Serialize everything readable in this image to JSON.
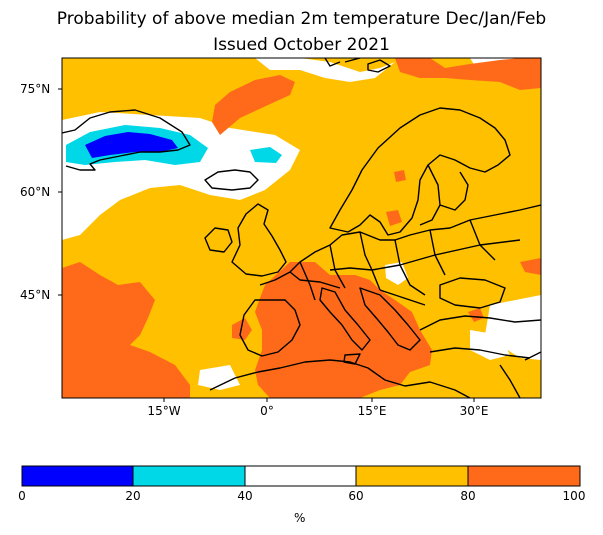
{
  "title": {
    "line1": "Probability of above median 2m temperature Dec/Jan/Feb",
    "line2": "Issued October 2021"
  },
  "map": {
    "lat_labels": [
      "75°N",
      "60°N",
      "45°N"
    ],
    "lon_labels": [
      "15°W",
      "0°",
      "15°E",
      "30°E"
    ]
  },
  "colorbar": {
    "ticks": [
      "0",
      "20",
      "40",
      "60",
      "80",
      "100"
    ],
    "unit": "%",
    "bins": [
      {
        "range": "0-20",
        "color": "#0000ff"
      },
      {
        "range": "20-40",
        "color": "#00d8e8"
      },
      {
        "range": "40-60",
        "color": "#ffffff"
      },
      {
        "range": "60-80",
        "color": "#ffc000"
      },
      {
        "range": "80-100",
        "color": "#ff6a1a"
      }
    ]
  },
  "colors": {
    "ocean_land_60_80": "#ffc000",
    "above_80": "#ff6a1a",
    "band_20_40": "#00d8e8",
    "band_0_20": "#0000ff",
    "band_40_60": "#ffffff"
  }
}
